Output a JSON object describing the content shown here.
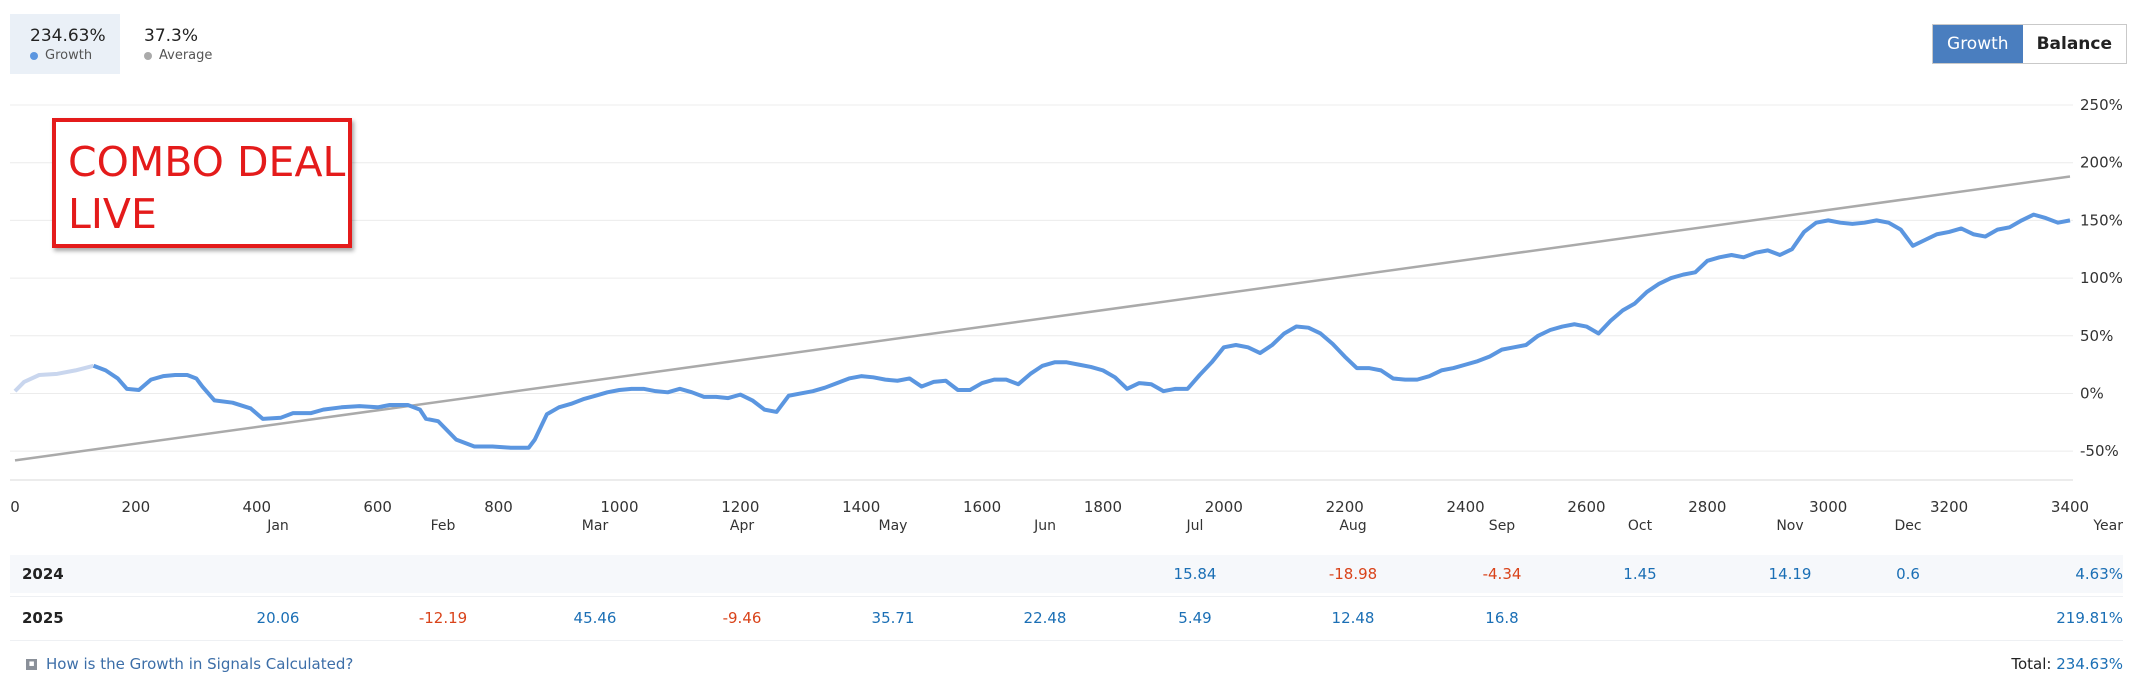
{
  "header": {
    "growth_value": "234.63%",
    "growth_label": "Growth",
    "average_value": "37.3%",
    "average_label": "Average",
    "toggle_growth": "Growth",
    "toggle_balance": "Balance"
  },
  "overlay": {
    "line1": "COMBO DEAL",
    "line2": "LIVE"
  },
  "colors": {
    "growth": "#5b96e0",
    "average": "#aaaaaa",
    "accent": "#4a7ebf",
    "positive": "#1b6fb5",
    "negative": "#d9431a",
    "overlay": "#e41b1b"
  },
  "chart_data": {
    "type": "line",
    "xlim": [
      0,
      3400
    ],
    "ylim": [
      -75,
      250
    ],
    "x_ticks": [
      0,
      200,
      400,
      600,
      800,
      1000,
      1200,
      1400,
      1600,
      1800,
      2000,
      2200,
      2400,
      2600,
      2800,
      3000,
      3200,
      3400
    ],
    "y_ticks": [
      "250%",
      "200%",
      "150%",
      "100%",
      "50%",
      "0%",
      "-50%"
    ],
    "y_tick_values": [
      250,
      200,
      150,
      100,
      50,
      0,
      -50
    ],
    "grid": true,
    "series": [
      {
        "name": "Growth",
        "values": [
          [
            0,
            2
          ],
          [
            15,
            10
          ],
          [
            40,
            16
          ],
          [
            70,
            17
          ],
          [
            100,
            20
          ],
          [
            130,
            24
          ],
          [
            150,
            20
          ],
          [
            170,
            13
          ],
          [
            185,
            4
          ],
          [
            205,
            3
          ],
          [
            225,
            12
          ],
          [
            245,
            15
          ],
          [
            265,
            16
          ],
          [
            285,
            16
          ],
          [
            300,
            13
          ],
          [
            310,
            6
          ],
          [
            330,
            -6
          ],
          [
            360,
            -8
          ],
          [
            390,
            -13
          ],
          [
            410,
            -22
          ],
          [
            440,
            -21
          ],
          [
            460,
            -17
          ],
          [
            490,
            -17
          ],
          [
            510,
            -14
          ],
          [
            540,
            -12
          ],
          [
            570,
            -11
          ],
          [
            600,
            -12
          ],
          [
            620,
            -10
          ],
          [
            650,
            -10
          ],
          [
            670,
            -14
          ],
          [
            680,
            -22
          ],
          [
            700,
            -24
          ],
          [
            730,
            -40
          ],
          [
            760,
            -46
          ],
          [
            790,
            -46
          ],
          [
            820,
            -47
          ],
          [
            850,
            -47
          ],
          [
            860,
            -40
          ],
          [
            880,
            -18
          ],
          [
            900,
            -12
          ],
          [
            920,
            -9
          ],
          [
            940,
            -5
          ],
          [
            960,
            -2
          ],
          [
            980,
            1
          ],
          [
            1000,
            3
          ],
          [
            1020,
            4
          ],
          [
            1040,
            4
          ],
          [
            1060,
            2
          ],
          [
            1080,
            1
          ],
          [
            1100,
            4
          ],
          [
            1120,
            1
          ],
          [
            1140,
            -3
          ],
          [
            1160,
            -3
          ],
          [
            1180,
            -4
          ],
          [
            1200,
            -1
          ],
          [
            1220,
            -6
          ],
          [
            1240,
            -14
          ],
          [
            1260,
            -16
          ],
          [
            1280,
            -2
          ],
          [
            1300,
            0
          ],
          [
            1320,
            2
          ],
          [
            1340,
            5
          ],
          [
            1360,
            9
          ],
          [
            1380,
            13
          ],
          [
            1400,
            15
          ],
          [
            1420,
            14
          ],
          [
            1440,
            12
          ],
          [
            1460,
            11
          ],
          [
            1480,
            13
          ],
          [
            1500,
            6
          ],
          [
            1520,
            10
          ],
          [
            1540,
            11
          ],
          [
            1560,
            3
          ],
          [
            1580,
            3
          ],
          [
            1600,
            9
          ],
          [
            1620,
            12
          ],
          [
            1640,
            12
          ],
          [
            1660,
            8
          ],
          [
            1680,
            17
          ],
          [
            1700,
            24
          ],
          [
            1720,
            27
          ],
          [
            1740,
            27
          ],
          [
            1760,
            25
          ],
          [
            1780,
            23
          ],
          [
            1800,
            20
          ],
          [
            1820,
            14
          ],
          [
            1840,
            4
          ],
          [
            1860,
            9
          ],
          [
            1880,
            8
          ],
          [
            1900,
            2
          ],
          [
            1920,
            4
          ],
          [
            1940,
            4
          ],
          [
            1960,
            16
          ],
          [
            1980,
            27
          ],
          [
            2000,
            40
          ],
          [
            2020,
            42
          ],
          [
            2040,
            40
          ],
          [
            2060,
            35
          ],
          [
            2080,
            42
          ],
          [
            2100,
            52
          ],
          [
            2120,
            58
          ],
          [
            2140,
            57
          ],
          [
            2160,
            52
          ],
          [
            2180,
            43
          ],
          [
            2200,
            32
          ],
          [
            2220,
            22
          ],
          [
            2240,
            22
          ],
          [
            2260,
            20
          ],
          [
            2280,
            13
          ],
          [
            2300,
            12
          ],
          [
            2320,
            12
          ],
          [
            2340,
            15
          ],
          [
            2360,
            20
          ],
          [
            2380,
            22
          ],
          [
            2400,
            25
          ],
          [
            2420,
            28
          ],
          [
            2440,
            32
          ],
          [
            2460,
            38
          ],
          [
            2480,
            40
          ],
          [
            2500,
            42
          ],
          [
            2520,
            50
          ],
          [
            2540,
            55
          ],
          [
            2560,
            58
          ],
          [
            2580,
            60
          ],
          [
            2600,
            58
          ],
          [
            2620,
            52
          ],
          [
            2640,
            63
          ],
          [
            2660,
            72
          ],
          [
            2680,
            78
          ],
          [
            2700,
            88
          ],
          [
            2720,
            95
          ],
          [
            2740,
            100
          ],
          [
            2760,
            103
          ],
          [
            2780,
            105
          ],
          [
            2800,
            115
          ],
          [
            2820,
            118
          ],
          [
            2840,
            120
          ],
          [
            2860,
            118
          ],
          [
            2880,
            122
          ],
          [
            2900,
            124
          ],
          [
            2920,
            120
          ],
          [
            2940,
            125
          ],
          [
            2960,
            140
          ],
          [
            2980,
            148
          ],
          [
            3000,
            150
          ],
          [
            3020,
            148
          ],
          [
            3040,
            147
          ],
          [
            3060,
            148
          ],
          [
            3080,
            150
          ],
          [
            3100,
            148
          ],
          [
            3120,
            142
          ],
          [
            3140,
            128
          ],
          [
            3160,
            133
          ],
          [
            3180,
            138
          ],
          [
            3200,
            140
          ],
          [
            3220,
            143
          ],
          [
            3240,
            138
          ],
          [
            3260,
            136
          ],
          [
            3280,
            142
          ],
          [
            3300,
            144
          ],
          [
            3320,
            150
          ],
          [
            3340,
            155
          ],
          [
            3360,
            152
          ],
          [
            3380,
            148
          ],
          [
            3400,
            150
          ]
        ]
      },
      {
        "name": "Average",
        "values": [
          [
            0,
            -58
          ],
          [
            3400,
            188
          ]
        ]
      }
    ]
  },
  "table": {
    "months": [
      "Jan",
      "Feb",
      "Mar",
      "Apr",
      "May",
      "Jun",
      "Jul",
      "Aug",
      "Sep",
      "Oct",
      "Nov",
      "Dec",
      "Year"
    ],
    "rows": [
      {
        "year": "2024",
        "cells": [
          "",
          "",
          "",
          "",
          "",
          "",
          "15.84",
          "-18.98",
          "-4.34",
          "1.45",
          "14.19",
          "0.6"
        ],
        "total": "4.63%"
      },
      {
        "year": "2025",
        "cells": [
          "20.06",
          "-12.19",
          "45.46",
          "-9.46",
          "35.71",
          "22.48",
          "5.49",
          "12.48",
          "16.8",
          "",
          "",
          ""
        ],
        "total": "219.81%"
      }
    ]
  },
  "footer": {
    "help_text": "How is the Growth in Signals Calculated?",
    "total_label": "Total:",
    "total_value": "234.63%"
  }
}
